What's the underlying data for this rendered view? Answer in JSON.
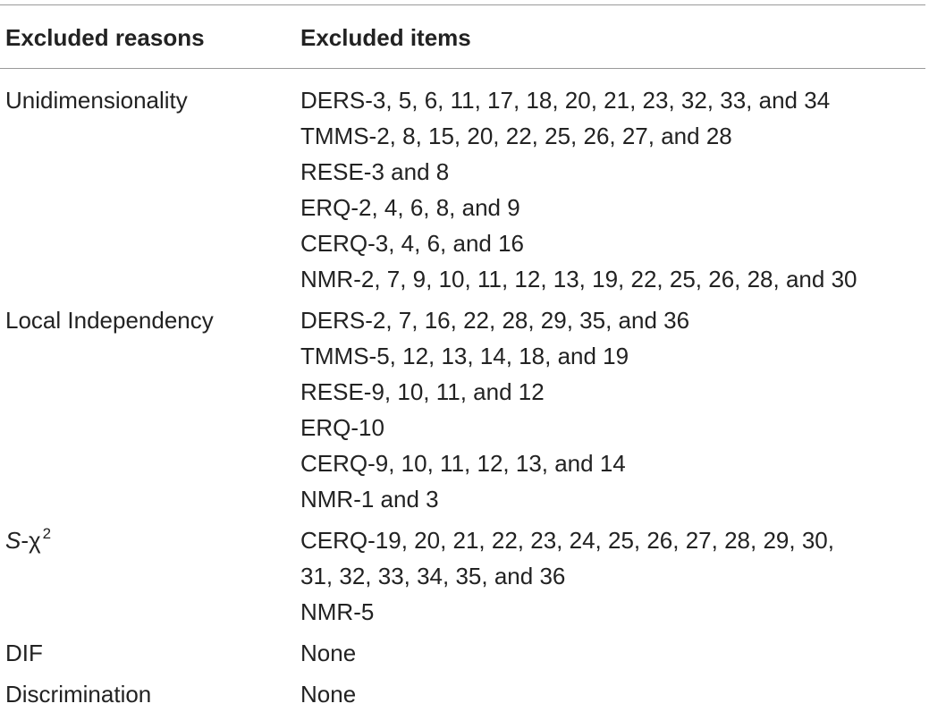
{
  "header": {
    "col1": "Excluded reasons",
    "col2": "Excluded items"
  },
  "rows": [
    {
      "reason": "Unidimensionality",
      "items": [
        "DERS-3, 5, 6, 11, 17, 18, 20, 21, 23, 32, 33, and 34",
        "TMMS-2, 8, 15, 20, 22, 25, 26, 27, and 28",
        "RESE-3 and 8",
        "ERQ-2, 4, 6, 8, and 9",
        "CERQ-3, 4, 6, and 16",
        "NMR-2, 7, 9, 10, 11, 12, 13, 19, 22, 25, 26, 28, and 30"
      ]
    },
    {
      "reason": "Local Independency",
      "items": [
        "DERS-2, 7, 16, 22, 28, 29, 35, and 36",
        "TMMS-5, 12, 13, 14, 18, and 19",
        "RESE-9, 10, 11, and 12",
        "ERQ-10",
        "CERQ-9, 10, 11, 12, 13, and 14",
        "NMR-1 and 3"
      ]
    },
    {
      "reason_parts": {
        "s": "S",
        "dash_chi": "-χ",
        "sup": "2"
      },
      "items": [
        "CERQ-19, 20, 21, 22, 23, 24, 25, 26, 27, 28, 29, 30,",
        "31, 32, 33, 34, 35, and 36",
        "NMR-5"
      ]
    },
    {
      "reason": "DIF",
      "items": [
        "None"
      ]
    },
    {
      "reason": "Discrimination",
      "items": [
        "None"
      ]
    }
  ]
}
